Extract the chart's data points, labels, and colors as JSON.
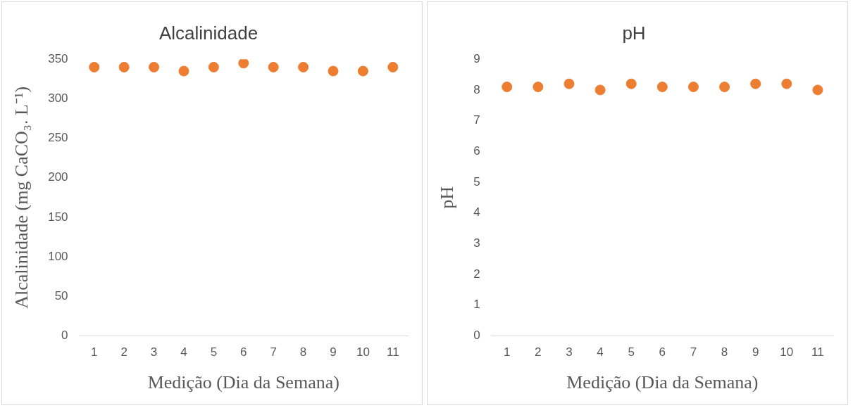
{
  "chart_data": [
    {
      "type": "scatter",
      "title": "Alcalinidade",
      "xlabel": "Medição (Dia da Semana)",
      "ylabel": "Alcalinidade (mg CaCO₃. L⁻¹)",
      "categories": [
        "1",
        "2",
        "3",
        "4",
        "5",
        "6",
        "7",
        "8",
        "9",
        "10",
        "11"
      ],
      "series": [
        {
          "color": "#ed7d31",
          "values": [
            340,
            340,
            340,
            335,
            340,
            345,
            340,
            340,
            335,
            335,
            340
          ]
        }
      ],
      "ylim": [
        0,
        350
      ],
      "yticks": [
        0,
        50,
        100,
        150,
        200,
        250,
        300,
        350
      ],
      "grid": false,
      "legend": false,
      "marker": "circle"
    },
    {
      "type": "scatter",
      "title": "pH",
      "xlabel": "Medição (Dia da Semana)",
      "ylabel": "pH",
      "categories": [
        "1",
        "2",
        "3",
        "4",
        "5",
        "6",
        "7",
        "8",
        "9",
        "10",
        "11"
      ],
      "series": [
        {
          "color": "#ed7d31",
          "values": [
            8.1,
            8.1,
            8.2,
            8.0,
            8.2,
            8.1,
            8.1,
            8.1,
            8.2,
            8.2,
            8.0
          ]
        }
      ],
      "ylim": [
        0,
        9
      ],
      "yticks": [
        0,
        1,
        2,
        3,
        4,
        5,
        6,
        7,
        8,
        9
      ],
      "grid": false,
      "legend": false,
      "marker": "circle"
    }
  ]
}
